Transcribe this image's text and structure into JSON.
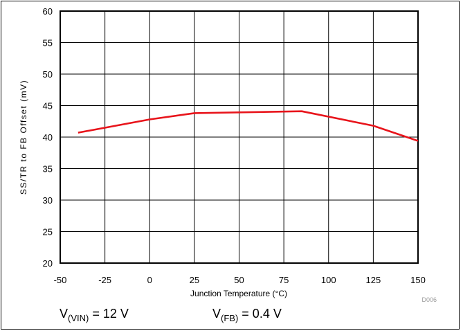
{
  "chart_data": {
    "type": "line",
    "title": "",
    "xlabel": "Junction Temperature (°C)",
    "ylabel": "SS/TR to FB Offset (mV)",
    "xlim": [
      -50,
      150
    ],
    "ylim": [
      20,
      60
    ],
    "x_ticks": [
      "-50",
      "-25",
      "0",
      "25",
      "50",
      "75",
      "100",
      "125",
      "150"
    ],
    "y_ticks": [
      "20",
      "25",
      "30",
      "35",
      "40",
      "45",
      "50",
      "55",
      "60"
    ],
    "grid": true,
    "series": [
      {
        "color": "#e8141b",
        "x": [
          -40,
          0,
          25,
          85,
          125,
          150
        ],
        "y": [
          40.7,
          42.8,
          43.8,
          44.1,
          41.8,
          39.4
        ]
      }
    ],
    "figure_id": "D006"
  },
  "conditions": {
    "vin": {
      "prefix": "V",
      "sub": "(VIN)",
      "rest": " = 12 V"
    },
    "vfb": {
      "prefix": "V",
      "sub": "(FB)",
      "rest": " = 0.4 V"
    }
  }
}
